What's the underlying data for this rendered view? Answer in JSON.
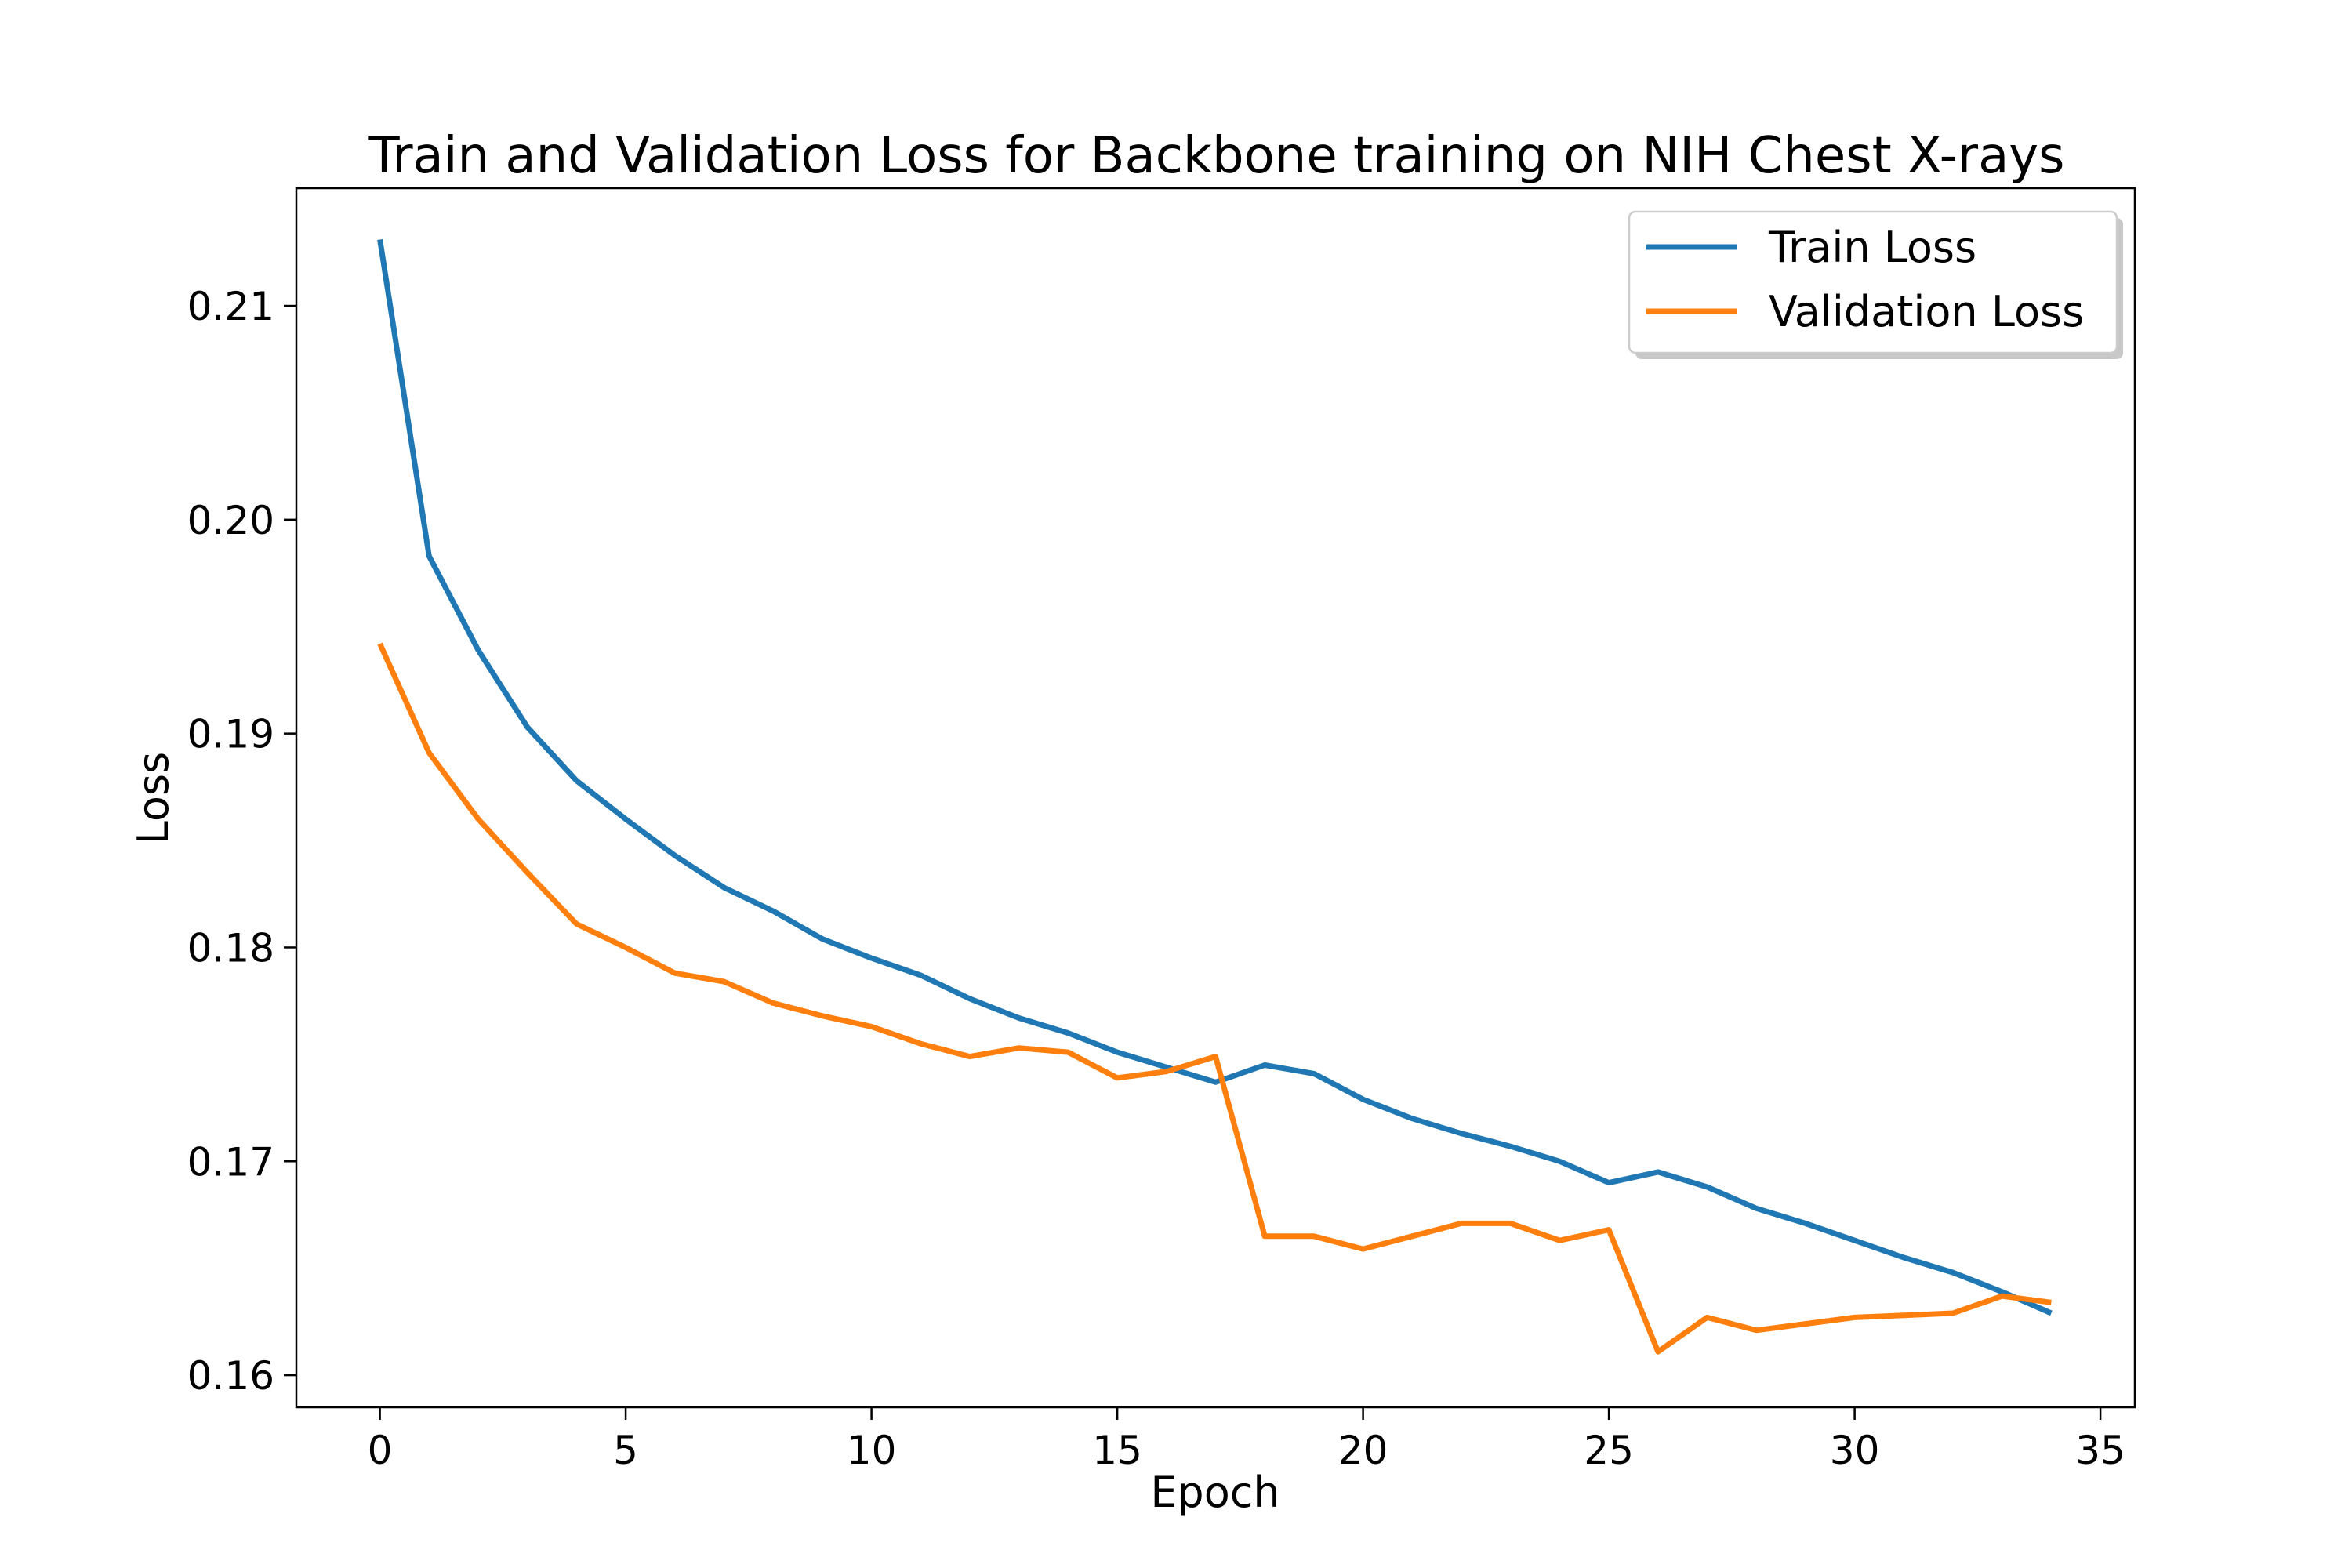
{
  "chart_data": {
    "type": "line",
    "title": "Train and Validation Loss for Backbone training on NIH Chest X-rays",
    "xlabel": "Epoch",
    "ylabel": "Loss",
    "xlim": [
      -1.7,
      35.7
    ],
    "ylim": [
      0.1585,
      0.2155
    ],
    "xticks": [
      0,
      5,
      10,
      15,
      20,
      25,
      30,
      35
    ],
    "xtick_labels": [
      "0",
      "5",
      "10",
      "15",
      "20",
      "25",
      "30",
      "35"
    ],
    "yticks": [
      0.16,
      0.17,
      0.18,
      0.19,
      0.2,
      0.21
    ],
    "ytick_labels": [
      "0.16",
      "0.17",
      "0.18",
      "0.19",
      "0.20",
      "0.21"
    ],
    "grid": false,
    "legend_position": "upper-right",
    "x": [
      0,
      1,
      2,
      3,
      4,
      5,
      6,
      7,
      8,
      9,
      10,
      11,
      12,
      13,
      14,
      15,
      16,
      17,
      18,
      19,
      20,
      21,
      22,
      23,
      24,
      25,
      26,
      27,
      28,
      29,
      30,
      31,
      32,
      33,
      34
    ],
    "series": [
      {
        "name": "Train Loss",
        "color": "#1f77b4",
        "values": [
          0.2131,
          0.1983,
          0.1939,
          0.1903,
          0.1878,
          0.186,
          0.1843,
          0.1828,
          0.1817,
          0.1804,
          0.1795,
          0.1787,
          0.1776,
          0.1767,
          0.176,
          0.1751,
          0.1744,
          0.1737,
          0.1745,
          0.1741,
          0.1729,
          0.172,
          0.1713,
          0.1707,
          0.17,
          0.169,
          0.1695,
          0.1688,
          0.1678,
          0.1671,
          0.1663,
          0.1655,
          0.1648,
          0.1639,
          0.1629
        ]
      },
      {
        "name": "Validation Loss",
        "color": "#ff7f0e",
        "values": [
          0.1942,
          0.1891,
          0.186,
          0.1835,
          0.1811,
          0.18,
          0.1788,
          0.1784,
          0.1774,
          0.1768,
          0.1763,
          0.1755,
          0.1749,
          0.1753,
          0.1751,
          0.1739,
          0.1742,
          0.1749,
          0.1665,
          0.1665,
          0.1659,
          0.1665,
          0.1671,
          0.1671,
          0.1663,
          0.1668,
          0.1611,
          0.1627,
          0.1621,
          0.1624,
          0.1627,
          0.1628,
          0.1629,
          0.1637,
          0.1634
        ]
      }
    ]
  }
}
